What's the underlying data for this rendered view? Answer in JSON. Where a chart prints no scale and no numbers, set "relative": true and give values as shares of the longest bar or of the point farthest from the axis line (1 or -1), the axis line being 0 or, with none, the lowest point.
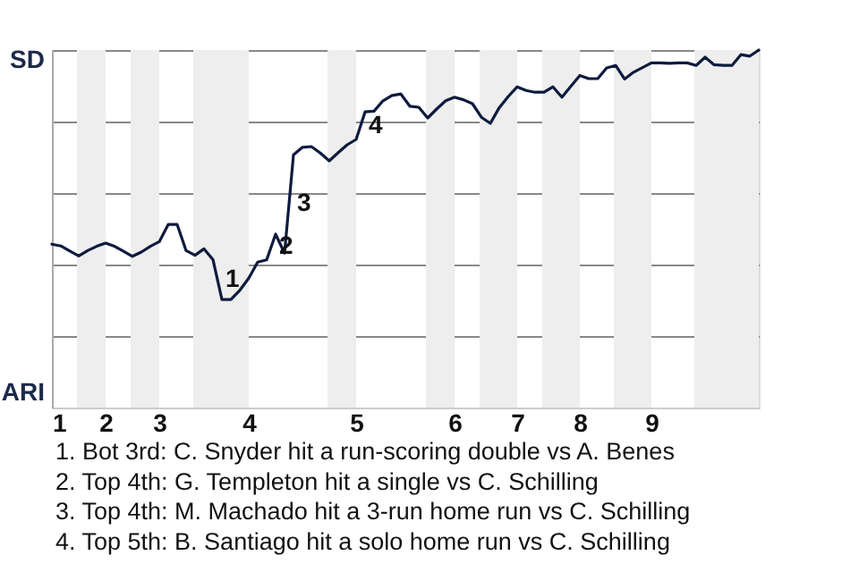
{
  "chart_data": {
    "type": "line",
    "relative": true,
    "categories": [
      "1",
      null,
      null,
      null,
      null,
      null,
      "2",
      null,
      null,
      null,
      null,
      null,
      "3",
      null,
      null,
      null,
      null,
      null,
      null,
      null,
      null,
      null,
      "4",
      null,
      null,
      null,
      null,
      null,
      null,
      null,
      null,
      null,
      null,
      null,
      "5",
      null,
      null,
      null,
      null,
      null,
      null,
      null,
      null,
      null,
      null,
      "6",
      null,
      null,
      null,
      null,
      null,
      null,
      "7",
      null,
      null,
      null,
      null,
      null,
      null,
      "8",
      null,
      null,
      null,
      null,
      null,
      null,
      null,
      "9",
      null,
      null,
      null,
      null,
      null,
      null,
      null,
      null,
      null,
      null,
      null,
      null
    ],
    "series": [
      {
        "color": "#0d1b3e",
        "values": [
          0.457,
          0.452,
          0.438,
          0.424,
          0.439,
          0.451,
          0.46,
          0.451,
          0.437,
          0.423,
          0.435,
          0.451,
          0.464,
          0.512,
          0.512,
          0.439,
          0.426,
          0.444,
          0.414,
          0.302,
          0.302,
          0.328,
          0.362,
          0.407,
          0.413,
          0.485,
          0.432,
          0.707,
          0.728,
          0.73,
          0.712,
          0.69,
          0.713,
          0.735,
          0.75,
          0.827,
          0.829,
          0.858,
          0.873,
          0.877,
          0.843,
          0.84,
          0.81,
          0.835,
          0.858,
          0.868,
          0.861,
          0.85,
          0.812,
          0.795,
          0.839,
          0.87,
          0.897,
          0.887,
          0.882,
          0.882,
          0.897,
          0.868,
          0.899,
          0.929,
          0.92,
          0.92,
          0.95,
          0.957,
          0.919,
          0.938,
          0.951,
          0.964,
          0.964,
          0.963,
          0.964,
          0.964,
          0.957,
          0.98,
          0.959,
          0.957,
          0.957,
          0.987,
          0.983,
          1
        ]
      }
    ],
    "grid": "y",
    "annotations": [
      "SD",
      "ARI",
      {
        "text": "1",
        "y": 0.302
      },
      {
        "text": "2",
        "y": 0.485
      },
      {
        "text": "3",
        "y": 0.707
      },
      {
        "text": "4",
        "y": 0.827
      },
      "1. Bot 3rd: C. Snyder hit a run-scoring double vs A. Benes",
      "2. Top 4th: G. Templeton hit a single vs C. Schilling",
      "3. Top 4th: M. Machado hit a 3-run home run vs C. Schilling",
      "4. Top 5th: B. Santiago hit a solo home run vs C. Schilling"
    ]
  }
}
